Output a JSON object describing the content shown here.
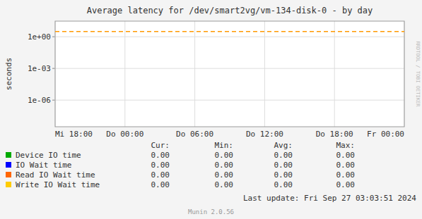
{
  "chart_data": {
    "type": "line",
    "title": "Average latency for /dev/smart2vg/vm-134-disk-0 - by day",
    "y_label": "seconds",
    "categories": [
      "Mi 18:00",
      "Do 00:00",
      "Do 06:00",
      "Do 12:00",
      "Do 18:00",
      "Fr 00:00"
    ],
    "log": "y",
    "ylim": [
      3e-09,
      30
    ],
    "yticks": [
      {
        "value": 1e-06,
        "label": "1e-06"
      },
      {
        "value": 0.001,
        "label": "1e-03"
      },
      {
        "value": 1,
        "label": "1e+00"
      }
    ],
    "grid": true,
    "legend": "bottom",
    "series": [
      {
        "name": "Device IO time",
        "color": "#00aa00"
      },
      {
        "name": "IO Wait time",
        "color": "#0000ff"
      },
      {
        "name": "Read IO Wait time",
        "color": "#ff6600"
      },
      {
        "name": "Write IO Wait time",
        "color": "#ffcc00"
      }
    ],
    "reference_lines": [
      {
        "y": 3.16,
        "color": "#ff9900",
        "line_style": "dashed"
      }
    ],
    "table": {
      "columns": [
        "Cur:",
        "Min:",
        "Avg:",
        "Max:"
      ],
      "rows": [
        {
          "values": [
            0,
            0,
            0,
            0
          ],
          "value_labels": [
            "0.00",
            "0.00",
            "0.00",
            "0.00"
          ]
        },
        {
          "values": [
            0,
            0,
            0,
            0
          ],
          "value_labels": [
            "0.00",
            "0.00",
            "0.00",
            "0.00"
          ]
        },
        {
          "values": [
            0,
            0,
            0,
            0
          ],
          "value_labels": [
            "0.00",
            "0.00",
            "0.00",
            "0.00"
          ]
        },
        {
          "values": [
            0,
            0,
            0,
            0
          ],
          "value_labels": [
            "0.00",
            "0.00",
            "0.00",
            "0.00"
          ]
        }
      ]
    },
    "annotations": [
      "Last update: Fri Sep 27 03:03:51 2024",
      "Munin 2.0.56",
      "RRDTOOL / TOBI OETIKER"
    ]
  }
}
